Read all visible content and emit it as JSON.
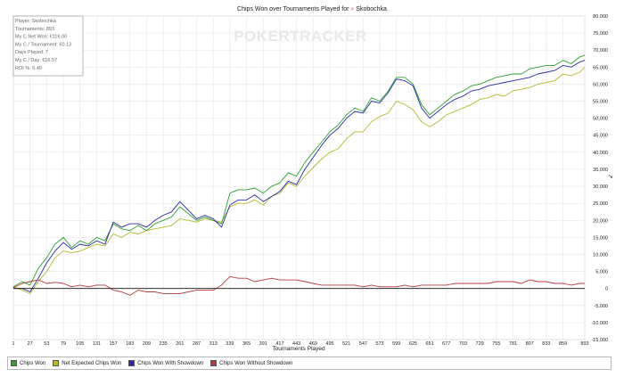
{
  "chart_data": {
    "type": "line",
    "title": "Chips Won over Tournaments Played for",
    "player_name": "Skobochka",
    "xlabel": "Tournaments Played",
    "ylabel": "",
    "x_ticks": [
      1,
      27,
      53,
      79,
      105,
      131,
      157,
      183,
      209,
      235,
      261,
      287,
      313,
      339,
      365,
      391,
      417,
      443,
      469,
      495,
      521,
      547,
      573,
      599,
      625,
      651,
      677,
      703,
      729,
      755,
      781,
      807,
      833,
      859,
      893
    ],
    "y_ticks": [
      "-15,000",
      "-10,000",
      "-5,000",
      "0",
      "5,000",
      "10,000",
      "15,000",
      "20,000",
      "25,000",
      "30,000",
      "35,000",
      "40,000",
      "45,000",
      "50,000",
      "55,000",
      "60,000",
      "65,000",
      "70,000",
      "75,000",
      "80,000"
    ],
    "xlim": [
      1,
      893
    ],
    "ylim": [
      -15000,
      80000
    ],
    "grid": true,
    "legend_position": "bottom",
    "watermark": "POKERTRACKER",
    "stats": [
      "Player: Skobochka",
      "Tournaments: 893",
      "My C Net Won: €116.00",
      "My C / Tournament: €0.13",
      "Days Played: 7",
      "My C / Day: €16.57",
      "ROI %: 6.49"
    ],
    "series": [
      {
        "name": "Chips Won",
        "color": "#2ea02e",
        "x": [
          1,
          15,
          27,
          40,
          53,
          66,
          79,
          92,
          105,
          118,
          131,
          144,
          157,
          170,
          183,
          196,
          209,
          222,
          235,
          248,
          261,
          274,
          287,
          300,
          313,
          326,
          339,
          352,
          365,
          378,
          391,
          404,
          417,
          430,
          443,
          456,
          469,
          482,
          495,
          508,
          521,
          534,
          547,
          560,
          573,
          586,
          599,
          612,
          625,
          638,
          651,
          664,
          677,
          690,
          703,
          716,
          729,
          742,
          755,
          768,
          781,
          794,
          807,
          820,
          833,
          846,
          859,
          872,
          885,
          893
        ],
        "y": [
          500,
          2000,
          1000,
          6000,
          9000,
          13000,
          15000,
          12000,
          14000,
          13000,
          15000,
          14000,
          19000,
          17500,
          17000,
          18500,
          17000,
          19000,
          20000,
          21000,
          24000,
          22000,
          20000,
          21000,
          20000,
          19000,
          28000,
          29000,
          29000,
          29500,
          28000,
          30000,
          31000,
          34000,
          33000,
          37000,
          40000,
          43000,
          46000,
          48000,
          51000,
          53000,
          52000,
          56000,
          55000,
          58000,
          62000,
          62000,
          60000,
          54000,
          51000,
          53000,
          55000,
          57000,
          58000,
          59500,
          60000,
          61000,
          62000,
          62500,
          63000,
          63000,
          64500,
          65000,
          65500,
          65500,
          67000,
          66000,
          68000,
          68500
        ]
      },
      {
        "name": "Net Expected Chips Won",
        "color": "#b8b830",
        "x": [
          1,
          15,
          27,
          40,
          53,
          66,
          79,
          92,
          105,
          118,
          131,
          144,
          157,
          170,
          183,
          196,
          209,
          222,
          235,
          248,
          261,
          274,
          287,
          300,
          313,
          326,
          339,
          352,
          365,
          378,
          391,
          404,
          417,
          430,
          443,
          456,
          469,
          482,
          495,
          508,
          521,
          534,
          547,
          560,
          573,
          586,
          599,
          612,
          625,
          638,
          651,
          664,
          677,
          690,
          703,
          716,
          729,
          742,
          755,
          768,
          781,
          794,
          807,
          820,
          833,
          846,
          859,
          872,
          885,
          893
        ],
        "y": [
          500,
          -500,
          -1500,
          2000,
          5000,
          9000,
          11000,
          10500,
          11000,
          12000,
          13000,
          12500,
          16000,
          15000,
          16500,
          16000,
          17000,
          17500,
          18000,
          18500,
          20500,
          20000,
          19500,
          20500,
          20000,
          19500,
          24000,
          25000,
          25000,
          26000,
          24500,
          27000,
          28000,
          31000,
          30000,
          33000,
          35500,
          38000,
          40000,
          41000,
          44000,
          46000,
          46000,
          49000,
          50500,
          51500,
          55000,
          54000,
          52500,
          49000,
          47500,
          49000,
          51000,
          52000,
          53000,
          54000,
          55500,
          56000,
          57000,
          56500,
          58000,
          58500,
          59000,
          60000,
          60500,
          61000,
          63000,
          62500,
          63500,
          65000
        ]
      },
      {
        "name": "Chips Won With Showdown",
        "color": "#2a2aa8",
        "x": [
          1,
          15,
          27,
          40,
          53,
          66,
          79,
          92,
          105,
          118,
          131,
          144,
          157,
          170,
          183,
          196,
          209,
          222,
          235,
          248,
          261,
          274,
          287,
          300,
          313,
          326,
          339,
          352,
          365,
          378,
          391,
          404,
          417,
          430,
          443,
          456,
          469,
          482,
          495,
          508,
          521,
          534,
          547,
          560,
          573,
          586,
          599,
          612,
          625,
          638,
          651,
          664,
          677,
          690,
          703,
          716,
          729,
          742,
          755,
          768,
          781,
          794,
          807,
          820,
          833,
          846,
          859,
          872,
          885,
          893
        ],
        "y": [
          0,
          0,
          -1000,
          3000,
          7500,
          11000,
          13500,
          11500,
          13000,
          12500,
          14000,
          13000,
          19500,
          18000,
          19000,
          19000,
          18000,
          20000,
          21500,
          22500,
          25500,
          23000,
          20500,
          21500,
          20500,
          18000,
          24500,
          26000,
          26000,
          27500,
          25500,
          27000,
          28500,
          31500,
          30500,
          35000,
          38500,
          42000,
          45000,
          47000,
          50000,
          52000,
          51500,
          55000,
          54500,
          57500,
          61500,
          61000,
          59500,
          53000,
          50000,
          52000,
          54000,
          55500,
          56500,
          58000,
          58500,
          59500,
          60000,
          60500,
          61000,
          61500,
          62000,
          63000,
          63500,
          64000,
          65500,
          65000,
          66500,
          67000
        ]
      },
      {
        "name": "Chips Won Without Showdown",
        "color": "#b83a3a",
        "x": [
          1,
          15,
          27,
          40,
          53,
          66,
          79,
          92,
          105,
          118,
          131,
          144,
          157,
          170,
          183,
          196,
          209,
          222,
          235,
          248,
          261,
          274,
          287,
          300,
          313,
          326,
          339,
          352,
          365,
          378,
          391,
          404,
          417,
          430,
          443,
          456,
          469,
          482,
          495,
          508,
          521,
          534,
          547,
          560,
          573,
          586,
          599,
          612,
          625,
          638,
          651,
          664,
          677,
          690,
          703,
          716,
          729,
          742,
          755,
          768,
          781,
          794,
          807,
          820,
          833,
          846,
          859,
          872,
          885,
          893
        ],
        "y": [
          200,
          1500,
          2000,
          2500,
          1500,
          1800,
          1500,
          500,
          1000,
          500,
          1000,
          1000,
          -500,
          -1000,
          -2000,
          -500,
          -1000,
          -1000,
          -1500,
          -1500,
          -1500,
          -1000,
          -500,
          -500,
          -500,
          1000,
          3500,
          3000,
          3000,
          2000,
          2500,
          3000,
          2500,
          2500,
          2500,
          2000,
          1500,
          1000,
          1000,
          1000,
          1000,
          1000,
          500,
          1000,
          500,
          500,
          500,
          1000,
          500,
          1000,
          1000,
          1000,
          1000,
          1500,
          1500,
          1500,
          1500,
          1500,
          2000,
          2000,
          2000,
          1500,
          2500,
          2000,
          2000,
          1500,
          1500,
          1000,
          1500,
          1500
        ]
      }
    ]
  }
}
